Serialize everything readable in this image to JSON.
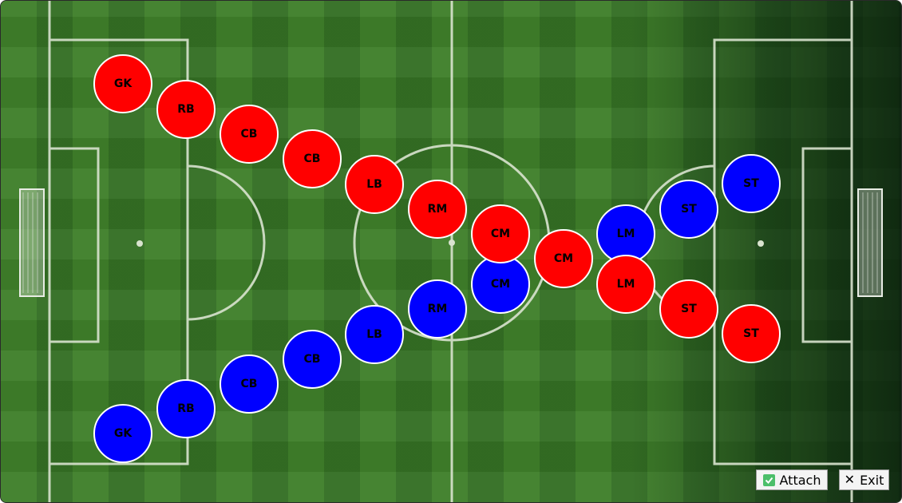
{
  "players": [
    {
      "team": "red",
      "label": "GK"
    },
    {
      "team": "red",
      "label": "RB"
    },
    {
      "team": "red",
      "label": "CB"
    },
    {
      "team": "red",
      "label": "CB"
    },
    {
      "team": "red",
      "label": "LB"
    },
    {
      "team": "red",
      "label": "RM"
    },
    {
      "team": "red",
      "label": "CM"
    },
    {
      "team": "red",
      "label": "CM"
    },
    {
      "team": "red",
      "label": "LM"
    },
    {
      "team": "red",
      "label": "ST"
    },
    {
      "team": "red",
      "label": "ST"
    },
    {
      "team": "blue",
      "label": "GK"
    },
    {
      "team": "blue",
      "label": "RB"
    },
    {
      "team": "blue",
      "label": "CB"
    },
    {
      "team": "blue",
      "label": "CB"
    },
    {
      "team": "blue",
      "label": "LB"
    },
    {
      "team": "blue",
      "label": "RM"
    },
    {
      "team": "blue",
      "label": "CM"
    },
    {
      "team": "blue",
      "label": "LM"
    },
    {
      "team": "blue",
      "label": "ST"
    },
    {
      "team": "blue",
      "label": "ST"
    }
  ],
  "colors": {
    "red_team": "#ff0000",
    "blue_team": "#0000ff",
    "pitch": "#3f7f2a"
  },
  "buttons": {
    "attach": {
      "label": "Attach",
      "icon": "checkbox-checked-icon"
    },
    "exit": {
      "label": "Exit",
      "icon": "close-icon"
    }
  }
}
